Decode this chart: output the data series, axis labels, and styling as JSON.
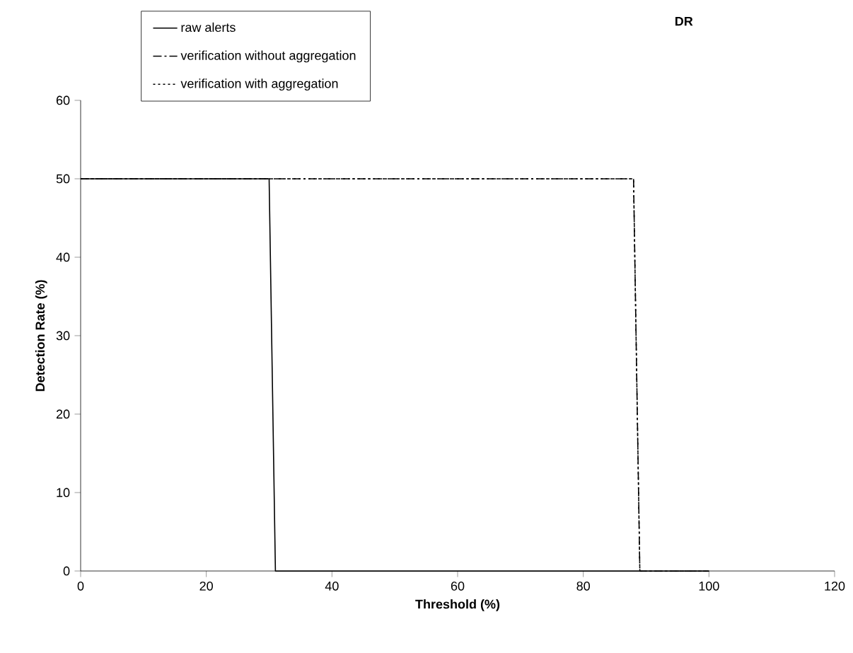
{
  "chart_data": {
    "type": "line",
    "title": "DR",
    "xlabel": "Threshold (%)",
    "ylabel": "Detection Rate (%)",
    "xlim": [
      0,
      120
    ],
    "xticks": [
      0,
      20,
      40,
      60,
      80,
      100,
      120
    ],
    "ylim": [
      0,
      60
    ],
    "yticks": [
      0,
      10,
      20,
      30,
      40,
      50,
      60
    ],
    "legend": "top left",
    "marker": "none",
    "series": [
      {
        "name": "raw alerts",
        "color": "#000000",
        "line_style": "solid",
        "x": [
          0,
          30,
          31,
          100
        ],
        "values": [
          50,
          50,
          0,
          0
        ]
      },
      {
        "name": "verification without aggregation",
        "color": "#000000",
        "line_style": "dashed",
        "x": [
          0,
          88,
          89,
          100
        ],
        "values": [
          50,
          50,
          0,
          0
        ]
      },
      {
        "name": "verification with aggregation",
        "color": "#000000",
        "line_style": "dotted",
        "x": [
          0,
          88,
          89,
          100
        ],
        "values": [
          50,
          50,
          0,
          0
        ]
      }
    ]
  }
}
